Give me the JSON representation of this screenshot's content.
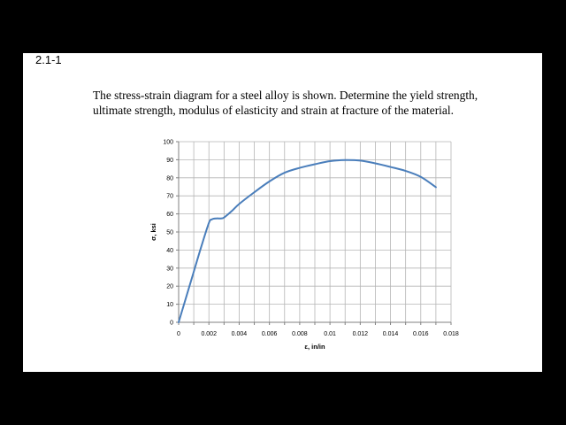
{
  "problem": {
    "number": "2.1-1",
    "text": "The stress-strain diagram for a steel alloy is shown.  Determine the yield strength, ultimate strength, modulus of elasticity and strain at fracture of the material."
  },
  "chart_data": {
    "type": "line",
    "title": "",
    "xlabel": "ε, in/in",
    "ylabel": "σ, ksi",
    "xlim": [
      0,
      0.018
    ],
    "ylim": [
      0,
      100
    ],
    "grid": true,
    "x_ticks": [
      0,
      0.001,
      0.002,
      0.003,
      0.004,
      0.005,
      0.006,
      0.007,
      0.008,
      0.009,
      0.01,
      0.011,
      0.012,
      0.013,
      0.014,
      0.015,
      0.016,
      0.017,
      0.018
    ],
    "x_tick_labels": [
      "0",
      "0.002",
      "0.004",
      "0.006",
      "0.008",
      "0.01",
      "0.012",
      "0.014",
      "0.016",
      "0.018"
    ],
    "y_tick_labels": [
      "0",
      "10",
      "20",
      "30",
      "40",
      "50",
      "60",
      "70",
      "80",
      "90",
      "100"
    ],
    "series": [
      {
        "color": "#4a7ebb",
        "x": [
          0,
          0.0005,
          0.001,
          0.0015,
          0.002,
          0.0022,
          0.0025,
          0.0028,
          0.003,
          0.0035,
          0.004,
          0.005,
          0.006,
          0.007,
          0.008,
          0.009,
          0.01,
          0.011,
          0.012,
          0.013,
          0.014,
          0.015,
          0.016,
          0.017
        ],
        "y": [
          0,
          14,
          28,
          42,
          55,
          57,
          57.5,
          57.5,
          58,
          61.5,
          65.5,
          72,
          78,
          82.8,
          85.5,
          87.5,
          89.2,
          89.8,
          89.5,
          88,
          86,
          83.8,
          80.5,
          74.8
        ]
      }
    ]
  }
}
